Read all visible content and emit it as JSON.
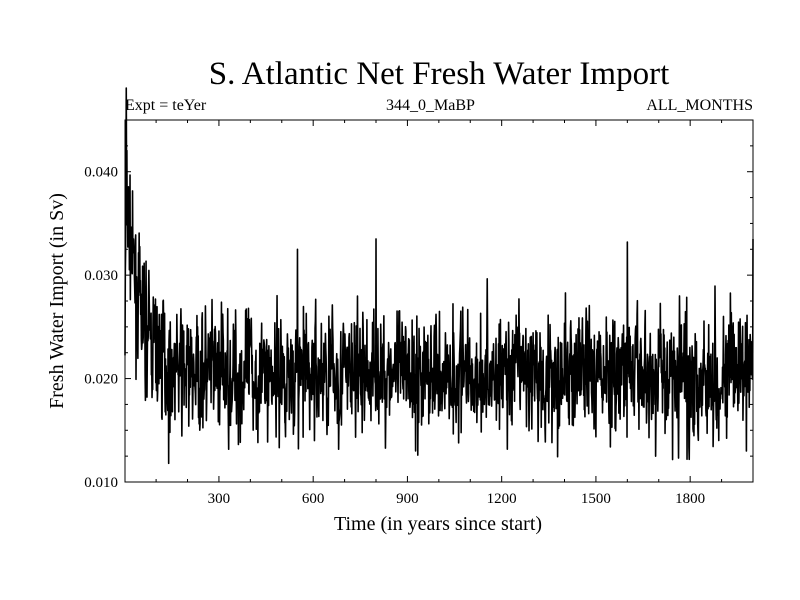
{
  "chart_data": {
    "type": "line",
    "title": "S. Atlantic Net Fresh Water Import",
    "experiment": "Expt = teYer",
    "run": "344_0_MaBP",
    "months": "ALL_MONTHS",
    "xlabel": "Time (in years since start)",
    "ylabel": "Fresh Water Import (in Sv)",
    "xlim": [
      1,
      2000
    ],
    "ylim": [
      0.01,
      0.045
    ],
    "x_ticks": [
      300,
      600,
      900,
      1200,
      1500,
      1800
    ],
    "y_ticks": [
      0.01,
      0.02,
      0.03,
      0.04
    ],
    "y_tick_labels": [
      "0.010",
      "0.020",
      "0.030",
      "0.040"
    ],
    "series": [
      {
        "name": "net fresh water import",
        "color": "#000000",
        "summary": "noisy annual series; spin-up spike ~0.041 Sv near year 5 decaying to a quasi-steady mean ~0.0205 Sv with range ~0.012-0.033 Sv",
        "anchors": [
          {
            "x": 1,
            "y": 0.0235
          },
          {
            "x": 5,
            "y": 0.041
          },
          {
            "x": 10,
            "y": 0.036
          },
          {
            "x": 25,
            "y": 0.031
          },
          {
            "x": 50,
            "y": 0.026
          },
          {
            "x": 100,
            "y": 0.0225
          },
          {
            "x": 150,
            "y": 0.0215
          },
          {
            "x": 200,
            "y": 0.0205
          },
          {
            "x": 2000,
            "y": 0.0205
          }
        ],
        "extremes": [
          {
            "x": 140,
            "y": 0.0118
          },
          {
            "x": 550,
            "y": 0.0325
          },
          {
            "x": 800,
            "y": 0.0335
          },
          {
            "x": 1600,
            "y": 0.0332
          },
          {
            "x": 1690,
            "y": 0.0125
          },
          {
            "x": 1790,
            "y": 0.0122
          },
          {
            "x": 2000,
            "y": 0.0335
          }
        ],
        "noise_sd": 0.0033
      }
    ]
  }
}
